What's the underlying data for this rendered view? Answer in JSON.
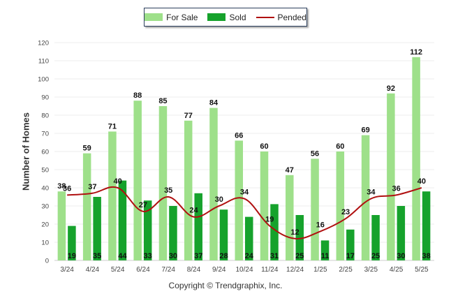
{
  "chart_data": {
    "type": "bar",
    "categories": [
      "3/24",
      "4/24",
      "5/24",
      "6/24",
      "7/24",
      "8/24",
      "9/24",
      "10/24",
      "11/24",
      "12/24",
      "1/25",
      "2/25",
      "3/25",
      "4/25",
      "5/25"
    ],
    "series": [
      {
        "name": "For Sale",
        "type": "bar",
        "color": "#9ee08a",
        "values": [
          38,
          59,
          71,
          88,
          85,
          77,
          84,
          66,
          60,
          47,
          56,
          60,
          69,
          92,
          112
        ]
      },
      {
        "name": "Sold",
        "type": "bar",
        "color": "#16a22c",
        "values": [
          19,
          35,
          44,
          33,
          30,
          37,
          28,
          24,
          31,
          25,
          11,
          17,
          25,
          30,
          38
        ]
      },
      {
        "name": "Pended",
        "type": "line",
        "color": "#b01010",
        "values": [
          36,
          37,
          40,
          27,
          35,
          24,
          30,
          34,
          19,
          12,
          16,
          23,
          34,
          36,
          40
        ]
      }
    ],
    "yticks": [
      "0",
      "10",
      "20",
      "30",
      "40",
      "50",
      "60",
      "70",
      "80",
      "90",
      "100",
      "110",
      "120"
    ],
    "ylim": [
      0,
      120
    ],
    "ylabel": "Number of Homes",
    "xlabel": "",
    "grid": true,
    "legend_position": "top-center"
  },
  "legend": {
    "items": [
      {
        "label": "For Sale",
        "color": "#9ee08a"
      },
      {
        "label": "Sold",
        "color": "#16a22c"
      },
      {
        "label": "Pended",
        "color": "#b01010"
      }
    ]
  },
  "footer": {
    "copyright": "Copyright © Trendgraphix, Inc."
  }
}
